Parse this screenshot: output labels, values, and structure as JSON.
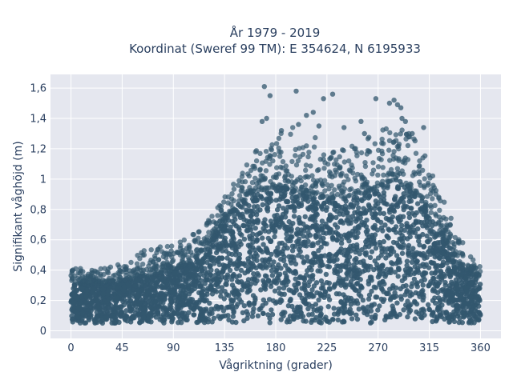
{
  "chart_data": {
    "type": "scatter",
    "title_line1": "År 1979 - 2019",
    "title_line2": "Koordinat (Sweref 99 TM): E 354624, N 6195933",
    "xlabel": "Vågriktning (grader)",
    "ylabel": "Signifikant våghöjd (m)",
    "xlim": [
      -18,
      378
    ],
    "ylim": [
      -0.05,
      1.69
    ],
    "xticks": [
      0,
      45,
      90,
      135,
      180,
      225,
      270,
      315,
      360
    ],
    "xtick_labels": [
      "0",
      "45",
      "90",
      "135",
      "180",
      "225",
      "270",
      "315",
      "360"
    ],
    "yticks": [
      0,
      0.2,
      0.4,
      0.6,
      0.8,
      1.0,
      1.2,
      1.4,
      1.6
    ],
    "ytick_labels": [
      "0",
      "0,2",
      "0,4",
      "0,6",
      "0,8",
      "1",
      "1,2",
      "1,4",
      "1,6"
    ],
    "grid": true,
    "marker_color": "#32576e",
    "plot_background": "#e5e7ef",
    "envelope_points": [
      [
        0,
        0.43
      ],
      [
        15,
        0.4
      ],
      [
        30,
        0.42
      ],
      [
        45,
        0.47
      ],
      [
        60,
        0.52
      ],
      [
        75,
        0.55
      ],
      [
        90,
        0.58
      ],
      [
        105,
        0.62
      ],
      [
        120,
        0.72
      ],
      [
        135,
        0.9
      ],
      [
        150,
        1.05
      ],
      [
        165,
        1.22
      ],
      [
        180,
        1.3
      ],
      [
        195,
        1.35
      ],
      [
        210,
        1.3
      ],
      [
        225,
        1.22
      ],
      [
        240,
        1.2
      ],
      [
        255,
        1.25
      ],
      [
        270,
        1.35
      ],
      [
        285,
        1.38
      ],
      [
        295,
        1.32
      ],
      [
        305,
        1.25
      ],
      [
        315,
        1.1
      ],
      [
        330,
        0.82
      ],
      [
        345,
        0.58
      ],
      [
        360,
        0.42
      ]
    ],
    "bulk_points": [
      [
        0,
        0.32
      ],
      [
        15,
        0.3
      ],
      [
        30,
        0.31
      ],
      [
        45,
        0.33
      ],
      [
        60,
        0.35
      ],
      [
        75,
        0.37
      ],
      [
        90,
        0.4
      ],
      [
        105,
        0.45
      ],
      [
        120,
        0.56
      ],
      [
        135,
        0.72
      ],
      [
        150,
        0.85
      ],
      [
        165,
        0.92
      ],
      [
        180,
        0.95
      ],
      [
        195,
        0.93
      ],
      [
        210,
        0.9
      ],
      [
        225,
        0.88
      ],
      [
        240,
        0.87
      ],
      [
        255,
        0.9
      ],
      [
        270,
        0.95
      ],
      [
        285,
        1.0
      ],
      [
        295,
        0.97
      ],
      [
        305,
        0.9
      ],
      [
        315,
        0.78
      ],
      [
        330,
        0.58
      ],
      [
        345,
        0.42
      ],
      [
        360,
        0.32
      ]
    ],
    "outliers": [
      [
        170,
        1.61
      ],
      [
        175,
        1.55
      ],
      [
        198,
        1.58
      ],
      [
        207,
        1.42
      ],
      [
        213,
        1.44
      ],
      [
        218,
        1.35
      ],
      [
        222,
        1.53
      ],
      [
        230,
        1.56
      ],
      [
        268,
        1.53
      ],
      [
        280,
        1.5
      ],
      [
        284,
        1.52
      ],
      [
        287,
        1.49
      ],
      [
        290,
        1.47
      ],
      [
        291,
        1.4
      ],
      [
        294,
        1.38
      ],
      [
        300,
        1.3
      ],
      [
        310,
        1.34
      ],
      [
        168,
        1.38
      ],
      [
        172,
        1.4
      ],
      [
        185,
        1.32
      ],
      [
        200,
        1.36
      ],
      [
        240,
        1.34
      ],
      [
        255,
        1.38
      ],
      [
        258,
        1.3
      ]
    ]
  }
}
